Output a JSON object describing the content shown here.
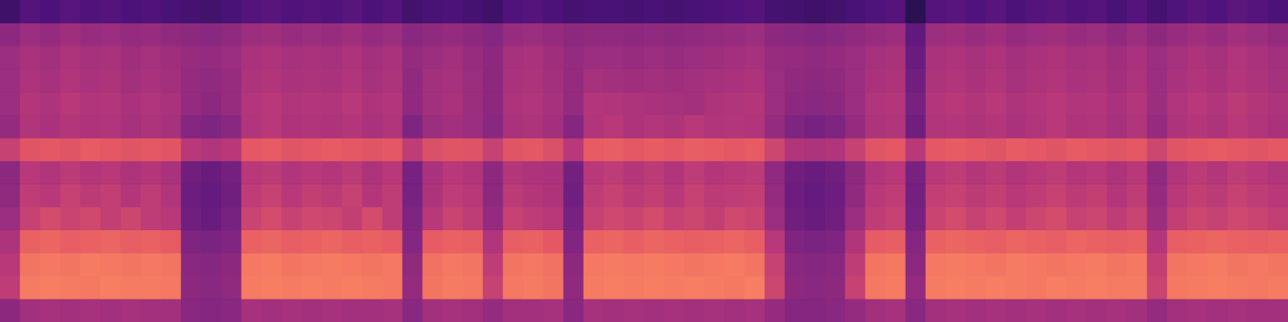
{
  "chart_data": {
    "type": "heatmap",
    "tick_labels": false,
    "zlim": [
      0,
      100
    ],
    "cells": [
      [
        46,
        52,
        53,
        52,
        53,
        52,
        53,
        52,
        52,
        45,
        44,
        45,
        53,
        52,
        53,
        52,
        53,
        52,
        52,
        53,
        45,
        52,
        53,
        52,
        48,
        52,
        52,
        53,
        45,
        53,
        52,
        53,
        52,
        53,
        52,
        53,
        52,
        53,
        48,
        44,
        44,
        45,
        48,
        52,
        53,
        45,
        52,
        53,
        52,
        53,
        52,
        53,
        52,
        53,
        52,
        53,
        52,
        48,
        52,
        53,
        52,
        53,
        52,
        52
      ],
      [
        60,
        82,
        83,
        82,
        81,
        83,
        82,
        82,
        81,
        46,
        45,
        47,
        82,
        83,
        82,
        83,
        82,
        83,
        82,
        81,
        48,
        80,
        82,
        81,
        62,
        81,
        82,
        80,
        47,
        82,
        83,
        82,
        83,
        82,
        83,
        82,
        81,
        83,
        64,
        46,
        45,
        46,
        62,
        81,
        82,
        48,
        82,
        83,
        82,
        83,
        82,
        81,
        83,
        82,
        83,
        82,
        82,
        63,
        81,
        82,
        83,
        82,
        81,
        82
      ],
      [
        58,
        80,
        81,
        80,
        82,
        81,
        80,
        81,
        80,
        45,
        44,
        46,
        81,
        82,
        80,
        81,
        82,
        81,
        80,
        81,
        47,
        79,
        81,
        80,
        60,
        80,
        81,
        79,
        46,
        81,
        82,
        81,
        82,
        81,
        80,
        81,
        82,
        80,
        62,
        45,
        44,
        45,
        60,
        80,
        81,
        46,
        81,
        82,
        81,
        80,
        82,
        81,
        80,
        81,
        82,
        80,
        81,
        61,
        80,
        81,
        82,
        80,
        81,
        80
      ],
      [
        55,
        74,
        75,
        73,
        74,
        75,
        73,
        74,
        72,
        42,
        41,
        43,
        74,
        75,
        73,
        74,
        75,
        73,
        74,
        72,
        44,
        72,
        74,
        73,
        56,
        73,
        74,
        71,
        43,
        74,
        75,
        73,
        75,
        74,
        73,
        74,
        75,
        73,
        58,
        42,
        41,
        42,
        56,
        72,
        73,
        44,
        74,
        75,
        74,
        73,
        75,
        74,
        73,
        75,
        74,
        73,
        74,
        57,
        73,
        74,
        75,
        74,
        73,
        74
      ],
      [
        50,
        62,
        66,
        63,
        65,
        61,
        64,
        60,
        58,
        38,
        36,
        40,
        63,
        66,
        62,
        65,
        64,
        61,
        66,
        60,
        42,
        58,
        63,
        60,
        48,
        62,
        60,
        58,
        40,
        62,
        65,
        63,
        66,
        62,
        64,
        61,
        65,
        63,
        50,
        38,
        36,
        38,
        50,
        60,
        62,
        40,
        63,
        66,
        62,
        65,
        61,
        64,
        66,
        62,
        64,
        60,
        63,
        50,
        61,
        64,
        62,
        65,
        63,
        61
      ],
      [
        47,
        60,
        58,
        62,
        59,
        61,
        57,
        60,
        56,
        37,
        35,
        38,
        60,
        62,
        58,
        61,
        59,
        62,
        57,
        60,
        40,
        55,
        60,
        58,
        46,
        59,
        57,
        55,
        38,
        60,
        62,
        59,
        61,
        58,
        62,
        59,
        60,
        61,
        48,
        37,
        35,
        37,
        47,
        58,
        60,
        39,
        61,
        62,
        59,
        61,
        58,
        60,
        62,
        59,
        61,
        57,
        60,
        48,
        58,
        61,
        59,
        62,
        60,
        58
      ],
      [
        46,
        58,
        56,
        59,
        57,
        58,
        55,
        57,
        54,
        38,
        36,
        39,
        58,
        59,
        56,
        58,
        57,
        59,
        55,
        58,
        40,
        54,
        58,
        56,
        46,
        57,
        55,
        54,
        39,
        58,
        60,
        57,
        59,
        56,
        60,
        57,
        58,
        59,
        47,
        38,
        36,
        38,
        46,
        56,
        58,
        40,
        58,
        60,
        57,
        59,
        56,
        58,
        60,
        57,
        58,
        55,
        58,
        47,
        56,
        59,
        57,
        60,
        58,
        56
      ],
      [
        62,
        70,
        71,
        70,
        72,
        71,
        70,
        71,
        70,
        58,
        56,
        58,
        71,
        72,
        70,
        71,
        72,
        71,
        70,
        71,
        60,
        68,
        70,
        69,
        62,
        70,
        71,
        68,
        58,
        72,
        73,
        71,
        72,
        71,
        73,
        72,
        71,
        72,
        64,
        56,
        55,
        56,
        62,
        70,
        71,
        58,
        71,
        72,
        71,
        70,
        72,
        71,
        70,
        72,
        71,
        70,
        71,
        64,
        70,
        71,
        72,
        71,
        70,
        71
      ],
      [
        48,
        56,
        54,
        57,
        55,
        56,
        53,
        55,
        53,
        44,
        42,
        45,
        56,
        58,
        55,
        56,
        55,
        57,
        54,
        56,
        42,
        50,
        52,
        50,
        45,
        54,
        55,
        52,
        44,
        56,
        58,
        55,
        57,
        55,
        58,
        56,
        57,
        56,
        48,
        42,
        40,
        42,
        48,
        55,
        56,
        38,
        56,
        57,
        55,
        57,
        54,
        56,
        58,
        55,
        56,
        53,
        56,
        48,
        55,
        57,
        55,
        58,
        56,
        54
      ],
      [
        50,
        57,
        55,
        58,
        56,
        57,
        54,
        56,
        54,
        48,
        46,
        49,
        57,
        58,
        56,
        57,
        56,
        58,
        55,
        57,
        47,
        52,
        54,
        50,
        46,
        55,
        56,
        53,
        48,
        57,
        56,
        55,
        54,
        53,
        52,
        55,
        56,
        57,
        50,
        46,
        45,
        46,
        50,
        56,
        57,
        40,
        57,
        58,
        56,
        58,
        55,
        57,
        58,
        56,
        57,
        54,
        57,
        50,
        56,
        58,
        56,
        59,
        57,
        55
      ],
      [
        50,
        55,
        53,
        56,
        54,
        55,
        52,
        54,
        52,
        48,
        47,
        49,
        55,
        56,
        54,
        55,
        54,
        56,
        53,
        55,
        47,
        52,
        53,
        50,
        46,
        54,
        55,
        52,
        48,
        53,
        52,
        51,
        52,
        51,
        52,
        53,
        54,
        55,
        50,
        47,
        46,
        47,
        50,
        54,
        55,
        38,
        55,
        56,
        54,
        56,
        53,
        55,
        56,
        54,
        55,
        52,
        55,
        50,
        54,
        56,
        54,
        57,
        55,
        53
      ],
      [
        50,
        54,
        52,
        55,
        53,
        54,
        51,
        53,
        51,
        49,
        48,
        50,
        54,
        55,
        53,
        54,
        53,
        55,
        52,
        54,
        48,
        50,
        52,
        49,
        46,
        53,
        54,
        51,
        48,
        50,
        50,
        49,
        50,
        49,
        50,
        51,
        52,
        53,
        49,
        48,
        47,
        48,
        50,
        53,
        54,
        36,
        54,
        55,
        53,
        55,
        52,
        54,
        55,
        53,
        54,
        51,
        54,
        50,
        53,
        55,
        53,
        56,
        54,
        52
      ],
      [
        46,
        50,
        48,
        51,
        49,
        50,
        48,
        49,
        47,
        46,
        45,
        47,
        50,
        51,
        49,
        50,
        49,
        51,
        48,
        50,
        45,
        47,
        48,
        46,
        44,
        49,
        50,
        48,
        46,
        47,
        47,
        46,
        47,
        46,
        47,
        48,
        49,
        50,
        46,
        45,
        44,
        45,
        47,
        49,
        50,
        34,
        50,
        51,
        49,
        51,
        48,
        50,
        51,
        49,
        50,
        47,
        50,
        46,
        49,
        51,
        49,
        52,
        50,
        48
      ],
      [
        24,
        30,
        28,
        31,
        29,
        30,
        28,
        29,
        27,
        26,
        25,
        27,
        30,
        31,
        29,
        30,
        29,
        31,
        28,
        30,
        25,
        27,
        28,
        26,
        24,
        29,
        30,
        28,
        26,
        27,
        27,
        26,
        27,
        26,
        27,
        28,
        29,
        30,
        26,
        25,
        24,
        25,
        27,
        29,
        30,
        18,
        30,
        31,
        29,
        31,
        28,
        30,
        31,
        29,
        30,
        27,
        30,
        26,
        29,
        31,
        29,
        32,
        30,
        28
      ]
    ]
  }
}
